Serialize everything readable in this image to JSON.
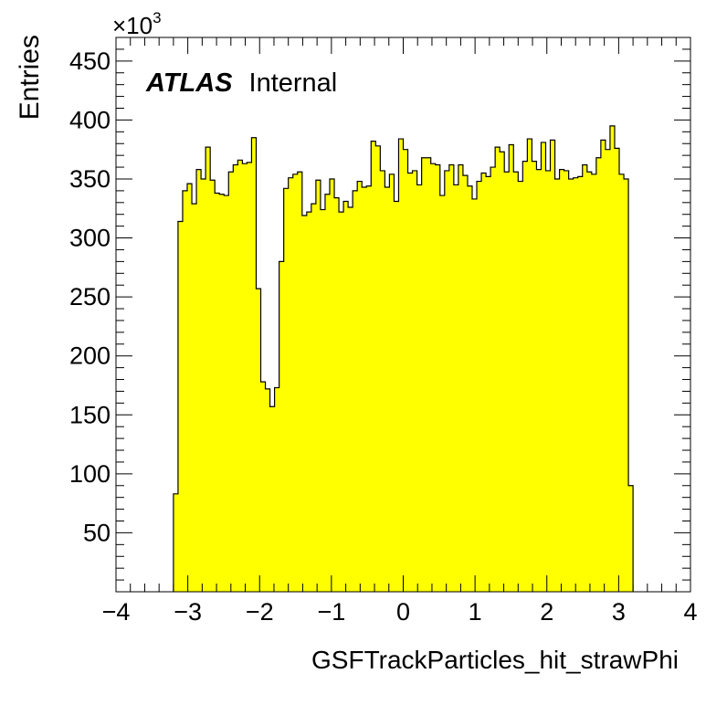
{
  "chart_data": {
    "type": "bar",
    "style": "filled-step-histogram",
    "fill_color": "#ffff00",
    "line_color": "#000000",
    "title": "",
    "xlabel": "GSFTrackParticles_hit_strawPhi",
    "ylabel": "Entries",
    "y_multiplier": "×10",
    "y_multiplier_exp": "3",
    "annotation": {
      "bold": "ATLAS",
      "text": "Internal"
    },
    "xlim": [
      -4,
      4
    ],
    "ylim": [
      0,
      470
    ],
    "x_ticks": [
      -4,
      -3,
      -2,
      -1,
      0,
      1,
      2,
      3,
      4
    ],
    "x_tick_labels": [
      "−4",
      "−3",
      "−2",
      "−1",
      "0",
      "1",
      "2",
      "3",
      "4"
    ],
    "y_ticks": [
      50,
      100,
      150,
      200,
      250,
      300,
      350,
      400,
      450
    ],
    "y_tick_labels": [
      "50",
      "100",
      "150",
      "200",
      "250",
      "300",
      "350",
      "400",
      "450"
    ],
    "bin_edges_range": [
      -3.2,
      3.2
    ],
    "values": [
      83,
      314,
      340,
      346,
      329,
      358,
      350,
      377,
      349,
      338,
      337,
      336,
      356,
      362,
      366,
      363,
      364,
      385,
      257,
      178,
      172,
      157,
      173,
      280,
      342,
      351,
      354,
      356,
      319,
      322,
      329,
      349,
      324,
      337,
      350,
      334,
      322,
      331,
      326,
      340,
      348,
      343,
      344,
      382,
      378,
      357,
      343,
      354,
      331,
      384,
      375,
      355,
      357,
      345,
      368,
      368,
      363,
      362,
      336,
      357,
      362,
      345,
      362,
      353,
      344,
      333,
      348,
      355,
      352,
      360,
      377,
      373,
      356,
      379,
      356,
      348,
      365,
      384,
      365,
      358,
      381,
      357,
      383,
      350,
      358,
      357,
      350,
      351,
      352,
      362,
      356,
      354,
      368,
      383,
      375,
      395,
      376,
      354,
      350,
      90
    ]
  }
}
